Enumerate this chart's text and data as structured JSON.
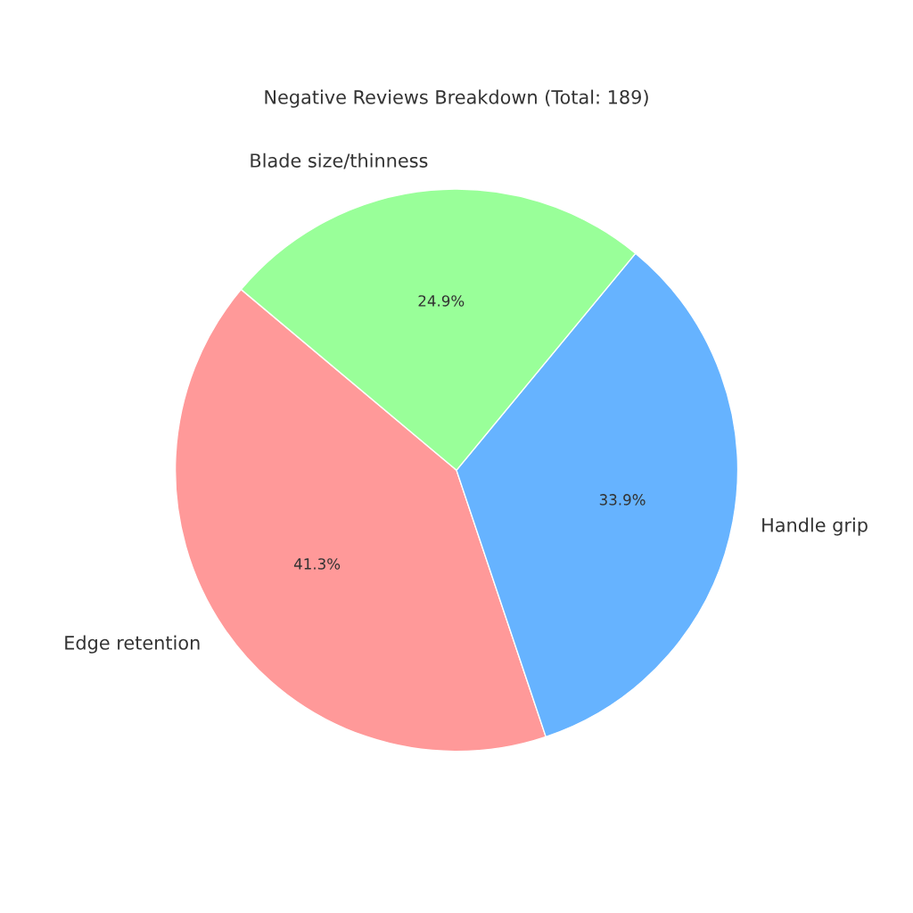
{
  "chart_data": {
    "type": "pie",
    "title": "Negative Reviews Breakdown (Total: 189)",
    "categories": [
      "Edge retention",
      "Handle grip",
      "Blade size/thinness"
    ],
    "values": [
      41.3,
      33.9,
      24.9
    ],
    "value_labels": [
      "41.3%",
      "33.9%",
      "24.9%"
    ],
    "colors": [
      "#ff9999",
      "#66b3ff",
      "#99ff99"
    ]
  }
}
